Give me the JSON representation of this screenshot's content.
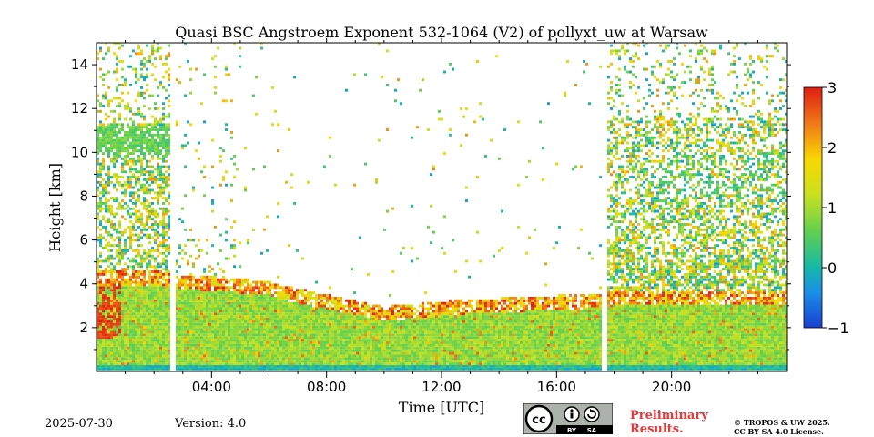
{
  "chart_data": {
    "type": "heatmap",
    "title": "Quasi BSC Angstroem Exponent 532-1064 (V2) of pollyxt_uw at Warsaw",
    "xlabel": "Time [UTC]",
    "ylabel": "Height [km]",
    "xlim_hours": [
      0,
      24
    ],
    "ylim_km": [
      0,
      15
    ],
    "x_ticks": [
      {
        "value": 4,
        "label": "04:00"
      },
      {
        "value": 8,
        "label": "08:00"
      },
      {
        "value": 12,
        "label": "12:00"
      },
      {
        "value": 16,
        "label": "16:00"
      },
      {
        "value": 20,
        "label": "20:00"
      }
    ],
    "y_ticks": [
      {
        "value": 2,
        "label": "2"
      },
      {
        "value": 4,
        "label": "4"
      },
      {
        "value": 6,
        "label": "6"
      },
      {
        "value": 8,
        "label": "8"
      },
      {
        "value": 10,
        "label": "10"
      },
      {
        "value": 12,
        "label": "12"
      },
      {
        "value": 14,
        "label": "14"
      }
    ],
    "colorbar": {
      "colormap": "jet",
      "range": [
        -1,
        3
      ],
      "ticks": [
        {
          "value": 3,
          "label": "3"
        },
        {
          "value": 2,
          "label": "2"
        },
        {
          "value": 1,
          "label": "1"
        },
        {
          "value": 0,
          "label": "0"
        },
        {
          "value": -1,
          "label": "−1"
        }
      ]
    },
    "data_gaps_hours": [
      [
        2.55,
        2.72
      ],
      [
        17.55,
        17.72
      ]
    ],
    "grid": false
  },
  "footer": {
    "date": "2025-07-30",
    "version": "Version: 4.0",
    "preliminary_line1": "Preliminary",
    "preliminary_line2": "Results.",
    "copyright_line1": "© TROPOS & UW 2025.",
    "copyright_line2": "CC BY SA 4.0 License.",
    "cc_badge_text": [
      "BY",
      "SA"
    ]
  },
  "colors": {
    "preliminary": "#e8383a"
  }
}
